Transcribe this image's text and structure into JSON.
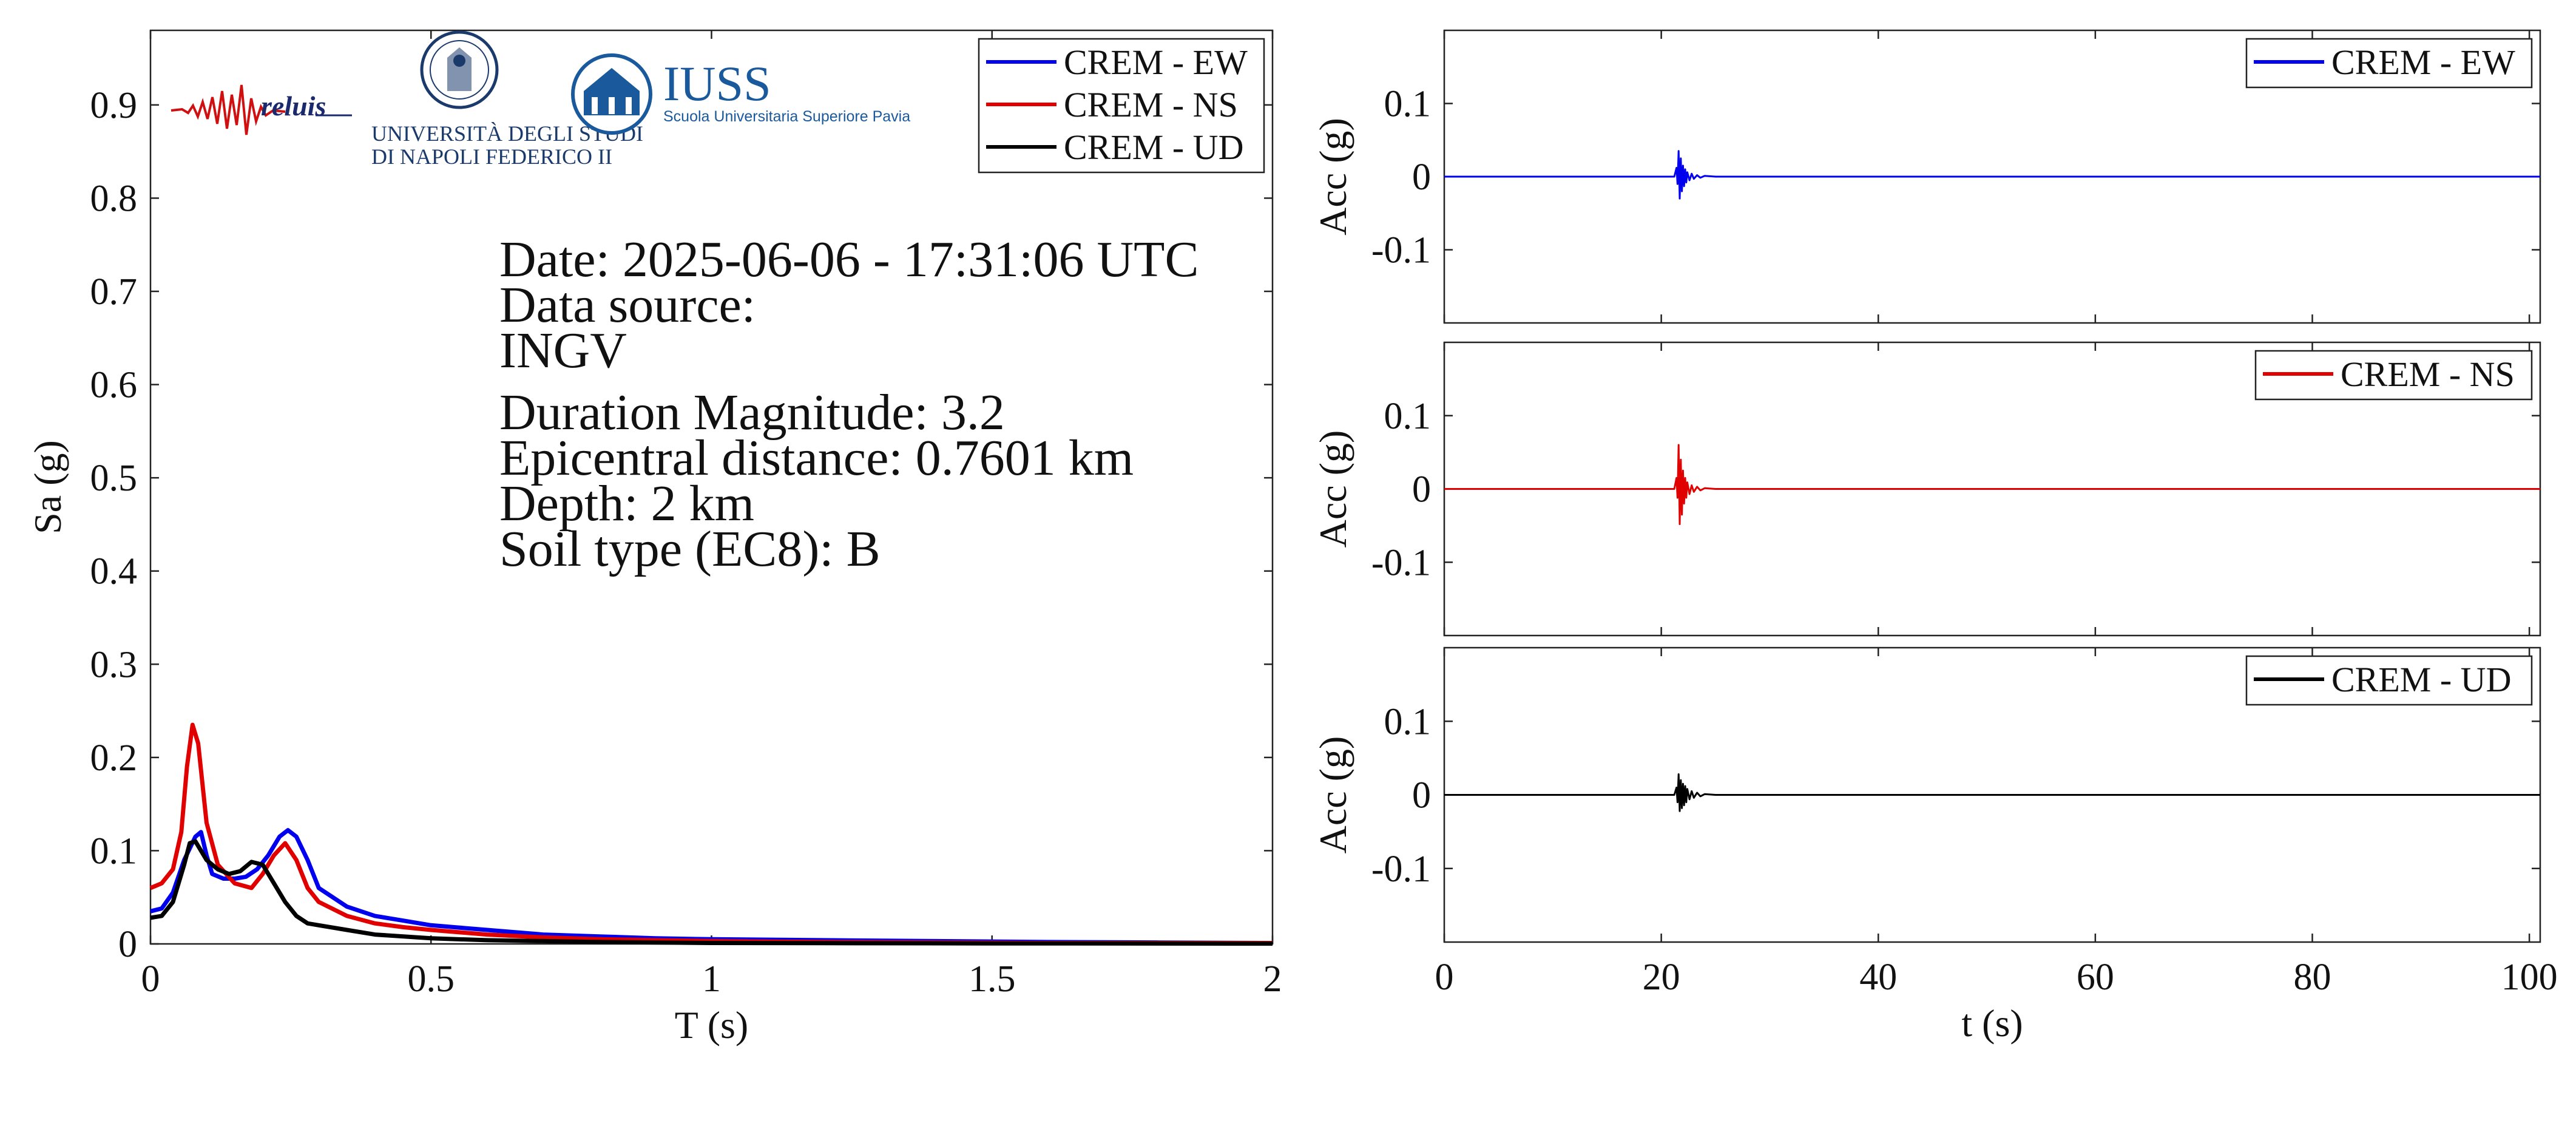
{
  "info": {
    "lines": [
      "Date: 2025-06-06 - 17:31:06 UTC",
      "Data source:",
      "INGV",
      "Duration Magnitude: 3.2",
      "Epicentral distance: 0.7601 km",
      "Depth: 2 km",
      "Soil type (EC8): B"
    ]
  },
  "logos": {
    "reluis": "reluis",
    "unina_line1": "UNIVERSITÀ DEGLI STUDI",
    "unina_line2": "DI NAPOLI FEDERICO II",
    "iuss_title": "IUSS",
    "iuss_subtitle": "Scuola Universitaria Superiore Pavia"
  },
  "colors": {
    "EW": "#0000ee",
    "NS": "#e00000",
    "UD": "#000000"
  },
  "chart_data": [
    {
      "type": "line",
      "xlabel": "T (s)",
      "ylabel": "Sa (g)",
      "xlim": [
        0,
        2
      ],
      "ylim": [
        0,
        0.98
      ],
      "xticks": [
        0,
        0.5,
        1,
        1.5,
        2
      ],
      "xtick_labels": [
        "0",
        "0.5",
        "1",
        "1.5",
        "2"
      ],
      "yticks": [
        0,
        0.1,
        0.2,
        0.3,
        0.4,
        0.5,
        0.6,
        0.7,
        0.8,
        0.9
      ],
      "ytick_labels": [
        "0",
        "0.1",
        "0.2",
        "0.3",
        "0.4",
        "0.5",
        "0.6",
        "0.7",
        "0.8",
        "0.9"
      ],
      "legend_position": "top-right",
      "series": [
        {
          "name": "CREM - EW",
          "color": "#0000ee",
          "x": [
            0,
            0.02,
            0.04,
            0.06,
            0.08,
            0.09,
            0.1,
            0.11,
            0.13,
            0.15,
            0.17,
            0.19,
            0.21,
            0.23,
            0.245,
            0.26,
            0.28,
            0.3,
            0.35,
            0.4,
            0.45,
            0.5,
            0.6,
            0.7,
            0.8,
            0.9,
            1.0,
            1.2,
            1.4,
            1.6,
            1.8,
            2.0
          ],
          "y": [
            0.035,
            0.038,
            0.055,
            0.09,
            0.115,
            0.12,
            0.095,
            0.075,
            0.07,
            0.07,
            0.072,
            0.08,
            0.095,
            0.115,
            0.122,
            0.115,
            0.09,
            0.06,
            0.04,
            0.03,
            0.025,
            0.02,
            0.015,
            0.01,
            0.008,
            0.006,
            0.005,
            0.004,
            0.003,
            0.002,
            0.0015,
            0.001
          ]
        },
        {
          "name": "CREM - NS",
          "color": "#e00000",
          "x": [
            0,
            0.02,
            0.04,
            0.055,
            0.065,
            0.075,
            0.085,
            0.1,
            0.12,
            0.15,
            0.18,
            0.2,
            0.22,
            0.24,
            0.26,
            0.28,
            0.3,
            0.35,
            0.4,
            0.45,
            0.5,
            0.6,
            0.7,
            0.8,
            0.9,
            1.0,
            1.2,
            1.4,
            1.6,
            1.8,
            2.0
          ],
          "y": [
            0.06,
            0.065,
            0.08,
            0.12,
            0.19,
            0.235,
            0.215,
            0.13,
            0.085,
            0.065,
            0.06,
            0.075,
            0.095,
            0.108,
            0.09,
            0.06,
            0.045,
            0.03,
            0.022,
            0.018,
            0.015,
            0.01,
            0.007,
            0.005,
            0.004,
            0.003,
            0.002,
            0.0015,
            0.001,
            0.001,
            0.001
          ]
        },
        {
          "name": "CREM - UD",
          "color": "#000000",
          "x": [
            0,
            0.02,
            0.04,
            0.06,
            0.07,
            0.08,
            0.09,
            0.1,
            0.12,
            0.14,
            0.16,
            0.18,
            0.2,
            0.22,
            0.24,
            0.26,
            0.28,
            0.3,
            0.35,
            0.4,
            0.5,
            0.6,
            0.8,
            1.0,
            1.2,
            1.5,
            2.0
          ],
          "y": [
            0.028,
            0.03,
            0.045,
            0.085,
            0.108,
            0.11,
            0.1,
            0.09,
            0.08,
            0.075,
            0.078,
            0.088,
            0.085,
            0.065,
            0.045,
            0.03,
            0.022,
            0.02,
            0.015,
            0.01,
            0.006,
            0.004,
            0.002,
            0.001,
            0.0008,
            0.0005,
            0.0003
          ]
        }
      ]
    },
    {
      "type": "line",
      "xlabel": "",
      "ylabel": "Acc (g)",
      "xlim": [
        0,
        101
      ],
      "ylim": [
        -0.2,
        0.2
      ],
      "yticks": [
        0.1,
        0,
        -0.1
      ],
      "ytick_labels": [
        "0.1",
        "0",
        "-0.1"
      ],
      "legend_position": "top-right",
      "series": [
        {
          "name": "CREM - EW",
          "color": "#0000ee",
          "x": [
            0,
            21.2,
            21.4,
            21.5,
            21.6,
            21.7,
            21.8,
            21.9,
            22.0,
            22.1,
            22.2,
            22.3,
            22.4,
            22.6,
            22.8,
            23.0,
            23.3,
            23.6,
            24.0,
            25.0,
            101
          ],
          "y": [
            0,
            0,
            0.012,
            -0.01,
            0.035,
            -0.03,
            0.025,
            -0.02,
            0.015,
            -0.013,
            0.01,
            -0.008,
            0.006,
            -0.005,
            0.004,
            -0.003,
            0.002,
            -0.0015,
            0.001,
            0,
            0
          ]
        }
      ]
    },
    {
      "type": "line",
      "xlabel": "",
      "ylabel": "Acc (g)",
      "xlim": [
        0,
        101
      ],
      "ylim": [
        -0.2,
        0.2
      ],
      "yticks": [
        0.1,
        0,
        -0.1
      ],
      "ytick_labels": [
        "0.1",
        "0",
        "-0.1"
      ],
      "legend_position": "top-right",
      "series": [
        {
          "name": "CREM - NS",
          "color": "#e00000",
          "x": [
            0,
            21.2,
            21.4,
            21.5,
            21.6,
            21.7,
            21.8,
            21.9,
            22.0,
            22.1,
            22.2,
            22.3,
            22.4,
            22.6,
            22.8,
            23.0,
            23.3,
            23.6,
            24.0,
            25.0,
            101
          ],
          "y": [
            0,
            0,
            0.015,
            -0.012,
            0.06,
            -0.048,
            0.04,
            -0.035,
            0.025,
            -0.02,
            0.015,
            -0.012,
            0.009,
            -0.007,
            0.005,
            -0.004,
            0.003,
            -0.002,
            0.001,
            0,
            0
          ]
        }
      ]
    },
    {
      "type": "line",
      "xlabel": "t (s)",
      "ylabel": "Acc (g)",
      "xlim": [
        0,
        101
      ],
      "ylim": [
        -0.2,
        0.2
      ],
      "xticks": [
        0,
        20,
        40,
        60,
        80,
        100
      ],
      "xtick_labels": [
        "0",
        "20",
        "40",
        "60",
        "80",
        "100"
      ],
      "yticks": [
        0.1,
        0,
        -0.1
      ],
      "ytick_labels": [
        "0.1",
        "0",
        "-0.1"
      ],
      "legend_position": "top-right",
      "series": [
        {
          "name": "CREM - UD",
          "color": "#000000",
          "x": [
            0,
            21.2,
            21.4,
            21.5,
            21.6,
            21.7,
            21.8,
            21.9,
            22.0,
            22.1,
            22.2,
            22.3,
            22.4,
            22.6,
            22.8,
            23.0,
            23.3,
            23.6,
            24.0,
            25.0,
            101
          ],
          "y": [
            0,
            0,
            0.01,
            -0.01,
            0.028,
            -0.022,
            0.02,
            -0.018,
            0.015,
            -0.014,
            0.012,
            -0.01,
            0.008,
            -0.006,
            0.005,
            -0.004,
            0.003,
            -0.002,
            0.001,
            0,
            0
          ]
        }
      ]
    }
  ]
}
